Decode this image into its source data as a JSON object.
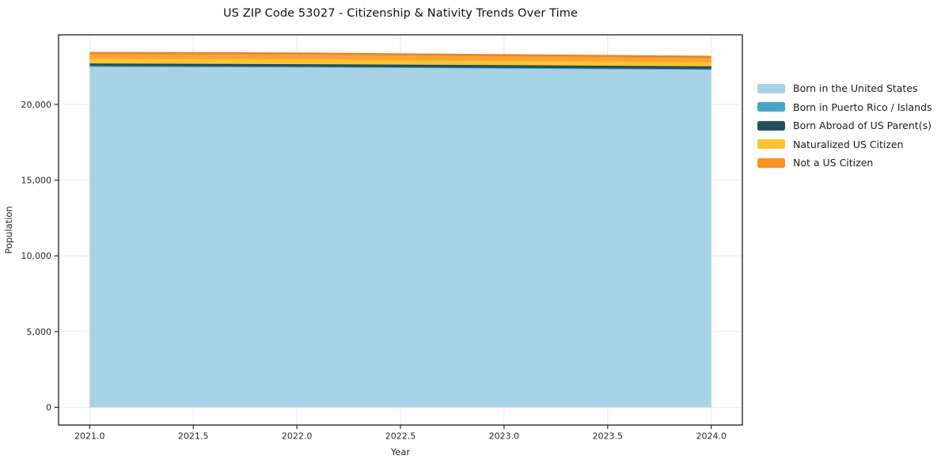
{
  "chart_data": {
    "type": "area",
    "stacked": true,
    "title": "US ZIP Code 53027 - Citizenship & Nativity Trends Over Time",
    "xlabel": "Year",
    "ylabel": "Population",
    "x": [
      2021,
      2022,
      2023,
      2024
    ],
    "series": [
      {
        "name": "Born in the United States",
        "values": [
          22500,
          22460,
          22380,
          22300
        ],
        "color": "#A7D3E7",
        "fill": "#A7D3E7",
        "line": "#9ACBE2"
      },
      {
        "name": "Born in Puerto Rico / Islands",
        "values": [
          30,
          30,
          30,
          30
        ],
        "color": "#46A5C4",
        "fill": "#46A5C4",
        "line": "#46A5C4"
      },
      {
        "name": "Born Abroad of US Parent(s)",
        "values": [
          170,
          160,
          185,
          180
        ],
        "color": "#24505F",
        "fill": "#24505F",
        "line": "#1F4757"
      },
      {
        "name": "Naturalized US Citizen",
        "values": [
          350,
          340,
          290,
          285
        ],
        "color": "#FEC32D",
        "fill": "#FCC42F",
        "line": "#FDB824"
      },
      {
        "name": "Not a US Citizen",
        "values": [
          345,
          370,
          360,
          345
        ],
        "color": "#F6941E",
        "fill": "#F8A339",
        "line": "#ED8420"
      }
    ],
    "xlim": [
      2020.85,
      2024.15
    ],
    "ylim": [
      -1170,
      24590
    ],
    "xticks": {
      "values": [
        2021,
        2021.5,
        2022,
        2022.5,
        2023,
        2023.5,
        2024
      ],
      "labels": [
        "2021.0",
        "2021.5",
        "2022.0",
        "2022.5",
        "2023.0",
        "2023.5",
        "2024.0"
      ]
    },
    "yticks": {
      "values": [
        0,
        5000,
        10000,
        15000,
        20000
      ],
      "labels": [
        "0",
        "5,000",
        "10,000",
        "15,000",
        "20,000"
      ]
    },
    "grid": true,
    "grid_color": "#e9e9e9",
    "spine_color": "#1a1a1a",
    "tick_label_color": "#262626",
    "legend_position": "right-outside"
  }
}
